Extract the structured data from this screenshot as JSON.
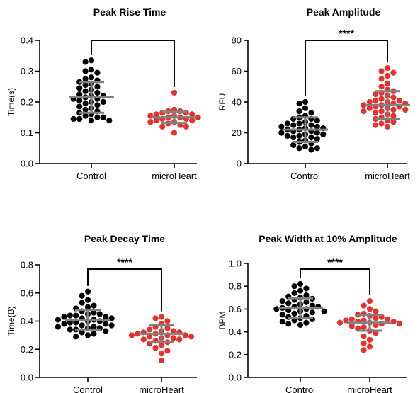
{
  "colors": {
    "control": "#000000",
    "microheart": "#e8302c",
    "errorbar": "#808080"
  },
  "chart_data": [
    {
      "type": "scatter",
      "title": "Peak Rise Time",
      "ylabel": "Time(s)",
      "ylim": [
        0,
        0.4
      ],
      "yticks": [
        "0.0",
        "0.1",
        "0.2",
        "0.3",
        "0.4"
      ],
      "categories": [
        "Control",
        "microHeart"
      ],
      "significance": "",
      "series": [
        {
          "name": "Control",
          "mean": 0.215,
          "sd": 0.05,
          "values": [
            0.33,
            0.335,
            0.305,
            0.3,
            0.295,
            0.28,
            0.275,
            0.27,
            0.26,
            0.25,
            0.245,
            0.24,
            0.235,
            0.23,
            0.225,
            0.22,
            0.22,
            0.215,
            0.21,
            0.205,
            0.2,
            0.2,
            0.195,
            0.19,
            0.185,
            0.18,
            0.175,
            0.17,
            0.165,
            0.16,
            0.155,
            0.15,
            0.15,
            0.145,
            0.145,
            0.14,
            0.14,
            0.265,
            0.255,
            0.21
          ]
        },
        {
          "name": "microHeart",
          "mean": 0.15,
          "sd": 0.018,
          "values": [
            0.23,
            0.175,
            0.17,
            0.17,
            0.165,
            0.165,
            0.16,
            0.16,
            0.155,
            0.155,
            0.15,
            0.15,
            0.15,
            0.145,
            0.145,
            0.14,
            0.14,
            0.135,
            0.135,
            0.13,
            0.125,
            0.12,
            0.12,
            0.1
          ]
        }
      ]
    },
    {
      "type": "scatter",
      "title": "Peak Amplitude",
      "ylabel": "RFU",
      "ylim": [
        0,
        80
      ],
      "yticks": [
        "0",
        "20",
        "40",
        "60",
        "80"
      ],
      "categories": [
        "Control",
        "microHeart"
      ],
      "significance": "****",
      "series": [
        {
          "name": "Control",
          "mean": 22,
          "sd": 8,
          "values": [
            40,
            39,
            36,
            34,
            33,
            31,
            30,
            29,
            28,
            27,
            26,
            25,
            25,
            24,
            24,
            23,
            23,
            22,
            22,
            21,
            21,
            20,
            20,
            19,
            19,
            18,
            18,
            17,
            17,
            16,
            15,
            14,
            13,
            12,
            11,
            10,
            10,
            9,
            29,
            26
          ]
        },
        {
          "name": "microHeart",
          "mean": 38,
          "sd": 9,
          "values": [
            62,
            60,
            59,
            57,
            55,
            52,
            50,
            48,
            47,
            46,
            45,
            44,
            43,
            42,
            41,
            40,
            40,
            39,
            39,
            38,
            38,
            37,
            37,
            36,
            36,
            35,
            35,
            34,
            33,
            32,
            31,
            30,
            29,
            28,
            27,
            26,
            25,
            24,
            41,
            34
          ]
        }
      ]
    },
    {
      "type": "scatter",
      "title": "Peak Decay Time",
      "ylabel": "Time(B)",
      "ylim": [
        0,
        0.8
      ],
      "yticks": [
        "0.0",
        "0.2",
        "0.4",
        "0.6",
        "0.8"
      ],
      "categories": [
        "Control",
        "microHeart"
      ],
      "significance": "****",
      "series": [
        {
          "name": "Control",
          "mean": 0.41,
          "sd": 0.07,
          "values": [
            0.61,
            0.58,
            0.55,
            0.53,
            0.51,
            0.5,
            0.49,
            0.47,
            0.46,
            0.45,
            0.44,
            0.44,
            0.43,
            0.42,
            0.42,
            0.41,
            0.41,
            0.4,
            0.4,
            0.39,
            0.39,
            0.38,
            0.38,
            0.37,
            0.37,
            0.36,
            0.36,
            0.35,
            0.35,
            0.34,
            0.34,
            0.33,
            0.32,
            0.31,
            0.3,
            0.29,
            0.45,
            0.43
          ]
        },
        {
          "name": "microHeart",
          "mean": 0.31,
          "sd": 0.06,
          "values": [
            0.43,
            0.42,
            0.4,
            0.38,
            0.36,
            0.35,
            0.34,
            0.33,
            0.33,
            0.32,
            0.32,
            0.31,
            0.31,
            0.3,
            0.3,
            0.3,
            0.29,
            0.29,
            0.28,
            0.28,
            0.27,
            0.27,
            0.26,
            0.25,
            0.24,
            0.23,
            0.21,
            0.19,
            0.17,
            0.12
          ]
        }
      ]
    },
    {
      "type": "scatter",
      "title": "Peak Width at 10% Amplitude",
      "ylabel": "BPM",
      "ylim": [
        0,
        1.0
      ],
      "yticks": [
        "0.0",
        "0.2",
        "0.4",
        "0.6",
        "0.8",
        "1.0"
      ],
      "categories": [
        "Control",
        "microHeart"
      ],
      "significance": "****",
      "series": [
        {
          "name": "Control",
          "mean": 0.61,
          "sd": 0.085,
          "values": [
            0.82,
            0.8,
            0.78,
            0.76,
            0.74,
            0.72,
            0.71,
            0.7,
            0.68,
            0.67,
            0.66,
            0.65,
            0.64,
            0.63,
            0.62,
            0.62,
            0.61,
            0.6,
            0.6,
            0.59,
            0.58,
            0.57,
            0.56,
            0.55,
            0.54,
            0.53,
            0.52,
            0.51,
            0.5,
            0.49,
            0.48,
            0.47,
            0.46,
            0.69,
            0.58
          ]
        },
        {
          "name": "microHeart",
          "mean": 0.48,
          "sd": 0.07,
          "values": [
            0.67,
            0.63,
            0.6,
            0.58,
            0.56,
            0.55,
            0.54,
            0.53,
            0.52,
            0.51,
            0.51,
            0.5,
            0.5,
            0.49,
            0.49,
            0.48,
            0.48,
            0.47,
            0.47,
            0.46,
            0.45,
            0.44,
            0.43,
            0.41,
            0.39,
            0.36,
            0.33,
            0.3,
            0.27,
            0.24
          ]
        }
      ]
    }
  ]
}
